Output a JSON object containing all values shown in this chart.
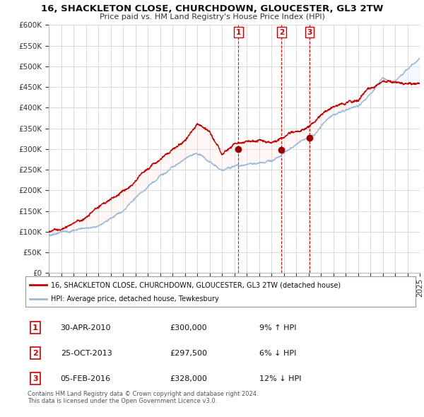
{
  "title": "16, SHACKLETON CLOSE, CHURCHDOWN, GLOUCESTER, GL3 2TW",
  "subtitle": "Price paid vs. HM Land Registry's House Price Index (HPI)",
  "ylabel_ticks": [
    "£0",
    "£50K",
    "£100K",
    "£150K",
    "£200K",
    "£250K",
    "£300K",
    "£350K",
    "£400K",
    "£450K",
    "£500K",
    "£550K",
    "£600K"
  ],
  "ytick_values": [
    0,
    50000,
    100000,
    150000,
    200000,
    250000,
    300000,
    350000,
    400000,
    450000,
    500000,
    550000,
    600000
  ],
  "xmin": 1995,
  "xmax": 2025,
  "ymin": 0,
  "ymax": 600000,
  "line_color_red": "#cc0000",
  "line_color_blue": "#99bbdd",
  "fill_color_blue": "#ddeeff",
  "marker_color": "#990000",
  "vline_color": "#cc0000",
  "bg_color": "#ffffff",
  "grid_color": "#cccccc",
  "transactions": [
    {
      "id": 1,
      "date": 2010.33,
      "price": 300000,
      "label": "1"
    },
    {
      "id": 2,
      "date": 2013.82,
      "price": 297500,
      "label": "2"
    },
    {
      "id": 3,
      "date": 2016.09,
      "price": 328000,
      "label": "3"
    }
  ],
  "transaction_table": [
    {
      "num": "1",
      "date": "30-APR-2010",
      "price": "£300,000",
      "pct": "9%",
      "dir": "↑",
      "ref": "HPI"
    },
    {
      "num": "2",
      "date": "25-OCT-2013",
      "price": "£297,500",
      "pct": "6%",
      "dir": "↓",
      "ref": "HPI"
    },
    {
      "num": "3",
      "date": "05-FEB-2016",
      "price": "£328,000",
      "pct": "12%",
      "dir": "↓",
      "ref": "HPI"
    }
  ],
  "legend_red": "16, SHACKLETON CLOSE, CHURCHDOWN, GLOUCESTER, GL3 2TW (detached house)",
  "legend_blue": "HPI: Average price, detached house, Tewkesbury",
  "footer1": "Contains HM Land Registry data © Crown copyright and database right 2024.",
  "footer2": "This data is licensed under the Open Government Licence v3.0.",
  "hpi_anchors_x": [
    1995,
    1996,
    1997,
    1998,
    1999,
    2000,
    2001,
    2002,
    2003,
    2004,
    2005,
    2006,
    2007,
    2008,
    2009,
    2010,
    2011,
    2012,
    2013,
    2014,
    2015,
    2016,
    2017,
    2018,
    2019,
    2020,
    2021,
    2022,
    2023,
    2024,
    2025
  ],
  "hpi_anchors_y": [
    93000,
    100000,
    108000,
    118000,
    132000,
    150000,
    168000,
    195000,
    220000,
    245000,
    265000,
    278000,
    290000,
    275000,
    245000,
    258000,
    262000,
    268000,
    272000,
    290000,
    308000,
    325000,
    355000,
    380000,
    395000,
    405000,
    440000,
    480000,
    470000,
    500000,
    520000
  ],
  "prop_anchors_x": [
    1995,
    1996,
    1997,
    1998,
    1999,
    2000,
    2001,
    2002,
    2003,
    2004,
    2005,
    2006,
    2007,
    2008,
    2009,
    2010,
    2011,
    2012,
    2013,
    2014,
    2015,
    2016,
    2017,
    2018,
    2019,
    2020,
    2021,
    2022,
    2023,
    2024,
    2025
  ],
  "prop_anchors_y": [
    100000,
    108000,
    117000,
    128000,
    143000,
    162000,
    183000,
    210000,
    238000,
    262000,
    285000,
    305000,
    355000,
    335000,
    275000,
    300000,
    310000,
    305000,
    297500,
    310000,
    328000,
    340000,
    375000,
    395000,
    405000,
    415000,
    445000,
    465000,
    455000,
    455000,
    460000
  ],
  "seed": 123
}
